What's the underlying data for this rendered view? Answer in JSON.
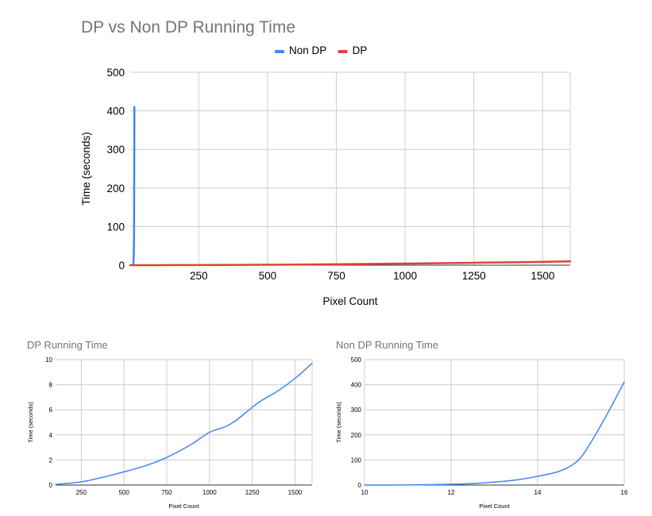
{
  "chart_data": [
    {
      "type": "line",
      "title": "DP vs Non DP Running Time",
      "xlabel": "Pixel Count",
      "ylabel": "Time (seconds)",
      "xlim": [
        1,
        1600
      ],
      "ylim": [
        0,
        500
      ],
      "x_ticks": [
        250,
        500,
        750,
        1000,
        1250,
        1500
      ],
      "y_ticks": [
        0,
        100,
        200,
        300,
        400,
        500
      ],
      "grid": true,
      "legend": "top",
      "series": [
        {
          "name": "Non DP",
          "color": "#4285f4",
          "x": [
            10,
            11,
            12,
            13,
            14,
            15,
            16
          ],
          "y": [
            0.01,
            0.5,
            3,
            12,
            35,
            110,
            410
          ]
        },
        {
          "name": "DP",
          "color": "#db4437",
          "x": [
            1,
            100,
            250,
            500,
            750,
            1000,
            1100,
            1250,
            1400,
            1500,
            1600
          ],
          "y": [
            0,
            0.1,
            0.3,
            1.0,
            2.2,
            4.2,
            4.8,
            6.3,
            7.5,
            8.5,
            9.7
          ]
        }
      ]
    },
    {
      "type": "line",
      "title": "DP Running Time",
      "xlabel": "Pixel Count",
      "ylabel": "Time (seconds)",
      "xlim": [
        100,
        1600
      ],
      "ylim": [
        0,
        10
      ],
      "x_ticks": [
        250,
        500,
        750,
        1000,
        1250,
        1500
      ],
      "y_ticks": [
        0,
        2,
        4,
        6,
        8,
        10
      ],
      "grid": true,
      "series": [
        {
          "color": "#4285f4",
          "x": [
            100,
            250,
            400,
            500,
            650,
            750,
            900,
            1000,
            1100,
            1150,
            1250,
            1300,
            1400,
            1500,
            1600
          ],
          "y": [
            0.05,
            0.25,
            0.7,
            1.05,
            1.65,
            2.2,
            3.3,
            4.2,
            4.7,
            5.1,
            6.2,
            6.7,
            7.5,
            8.5,
            9.7
          ]
        }
      ]
    },
    {
      "type": "line",
      "title": "Non DP Running Time",
      "xlabel": "Pixel Count",
      "ylabel": "Time (seconds)",
      "xlim": [
        10,
        16
      ],
      "ylim": [
        0,
        500
      ],
      "x_ticks": [
        10,
        12,
        14,
        16
      ],
      "y_ticks": [
        0,
        100,
        200,
        300,
        400,
        500
      ],
      "grid": true,
      "series": [
        {
          "color": "#4285f4",
          "x": [
            10,
            11,
            12,
            12.5,
            13,
            13.5,
            14,
            14.5,
            14.8,
            15,
            15.5,
            16
          ],
          "y": [
            0.01,
            0.5,
            3,
            6,
            12,
            20,
            35,
            55,
            80,
            110,
            250,
            410
          ]
        }
      ]
    }
  ]
}
